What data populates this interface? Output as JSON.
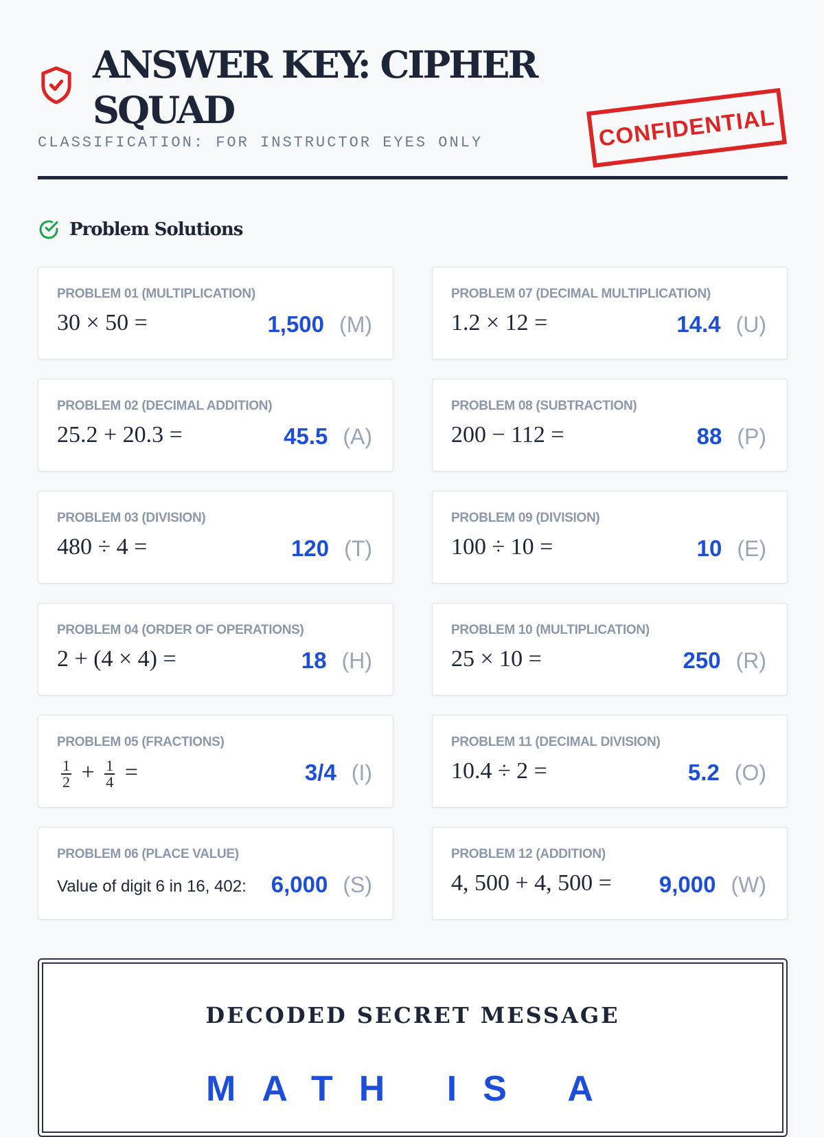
{
  "header": {
    "title": "ANSWER KEY: CIPHER SQUAD",
    "classification": "CLASSIFICATION: FOR INSTRUCTOR EYES ONLY",
    "stamp": "CONFIDENTIAL",
    "icon": "shield-check-icon"
  },
  "section": {
    "title": "Problem Solutions",
    "icon": "check-circle-icon"
  },
  "problems": [
    {
      "label": "PROBLEM 01 (MULTIPLICATION)",
      "equation": "30 × 50 =",
      "answer": "1,500",
      "letter": "(M)"
    },
    {
      "label": "PROBLEM 02 (DECIMAL ADDITION)",
      "equation": "25.2 + 20.3 =",
      "answer": "45.5",
      "letter": "(A)"
    },
    {
      "label": "PROBLEM 03 (DIVISION)",
      "equation": "480 ÷ 4 =",
      "answer": "120",
      "letter": "(T)"
    },
    {
      "label": "PROBLEM 04 (ORDER OF OPERATIONS)",
      "equation": "2 + (4 × 4) =",
      "answer": "18",
      "letter": "(H)"
    },
    {
      "label": "PROBLEM 05 (FRACTIONS)",
      "equation": "1/2 + 1/4 =",
      "n1": "1",
      "d1": "2",
      "n2": "1",
      "d2": "4",
      "op": "+",
      "eqs": "=",
      "answer": "3/4",
      "letter": "(I)"
    },
    {
      "label": "PROBLEM 06 (PLACE VALUE)",
      "equation": "Value of digit 6 in 16, 402:",
      "answer": "6,000",
      "letter": "(S)"
    },
    {
      "label": "PROBLEM 07 (DECIMAL MULTIPLICATION)",
      "equation": "1.2 × 12 =",
      "answer": "14.4",
      "letter": "(U)"
    },
    {
      "label": "PROBLEM 08 (SUBTRACTION)",
      "equation": "200 − 112 =",
      "answer": "88",
      "letter": "(P)"
    },
    {
      "label": "PROBLEM 09 (DIVISION)",
      "equation": "100 ÷ 10 =",
      "answer": "10",
      "letter": "(E)"
    },
    {
      "label": "PROBLEM 10 (MULTIPLICATION)",
      "equation": "25 × 10 =",
      "answer": "250",
      "letter": "(R)"
    },
    {
      "label": "PROBLEM 11 (DECIMAL DIVISION)",
      "equation": "10.4 ÷ 2 =",
      "answer": "5.2",
      "letter": "(O)"
    },
    {
      "label": "PROBLEM 12 (ADDITION)",
      "equation": "4, 500 + 4, 500 =",
      "answer": "9,000",
      "letter": "(W)"
    }
  ],
  "decoded": {
    "title": "DECODED SECRET MESSAGE",
    "message": "MATH IS A"
  },
  "colors": {
    "accent": "#1d4ed8",
    "stamp": "#dc2626",
    "success": "#16a34a",
    "dark": "#1c2638"
  }
}
